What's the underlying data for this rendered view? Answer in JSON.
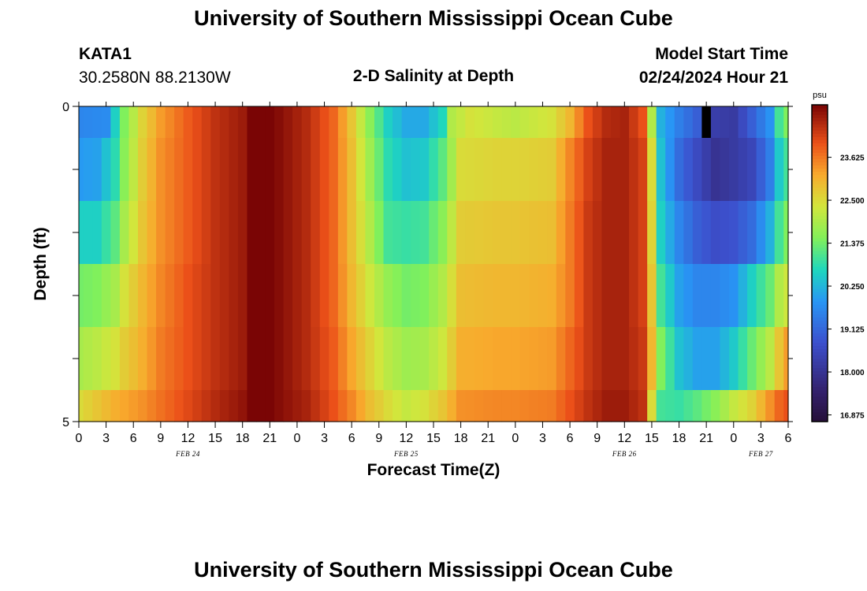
{
  "page": {
    "title": "University of Southern Mississippi Ocean Cube",
    "footer_title": "University of Southern Mississippi Ocean Cube",
    "station": {
      "id": "KATA1",
      "coords": "30.2580N  88.2130W"
    },
    "subtitle": "2-D Salinity at Depth",
    "model_start_label": "Model Start Time",
    "model_start_value": "02/24/2024 Hour 21"
  },
  "chart_data": {
    "type": "heatmap",
    "title": "2-D Salinity at Depth",
    "xlabel": "Forecast Time(Z)",
    "ylabel": "Depth (ft)",
    "x_unit": "hours since FEB 24 00Z",
    "xlim": [
      0,
      78
    ],
    "ylim": [
      0,
      5
    ],
    "y_ticks": [
      0,
      1,
      2,
      3,
      4,
      5
    ],
    "y_tick_labels": [
      "0",
      "",
      "",
      "",
      "",
      "5"
    ],
    "x_ticks": [
      0,
      3,
      6,
      9,
      12,
      15,
      18,
      21,
      24,
      27,
      30,
      33,
      36,
      39,
      42,
      45,
      48,
      51,
      54,
      57,
      60,
      63,
      66,
      69,
      72,
      75,
      78
    ],
    "x_tick_labels": [
      "0",
      "3",
      "6",
      "9",
      "12",
      "15",
      "18",
      "21",
      "0",
      "3",
      "6",
      "9",
      "12",
      "15",
      "18",
      "21",
      "0",
      "3",
      "6",
      "9",
      "12",
      "15",
      "18",
      "21",
      "0",
      "3",
      "6"
    ],
    "date_labels": [
      {
        "text": "FEB 24",
        "hour": 12
      },
      {
        "text": "FEB 25",
        "hour": 36
      },
      {
        "text": "FEB 26",
        "hour": 60
      },
      {
        "text": "FEB 27",
        "hour": 75
      }
    ],
    "colorbar": {
      "unit": "psu",
      "min": 16.7,
      "max": 25.0,
      "ticks": [
        16.875,
        18.0,
        19.125,
        20.25,
        21.375,
        22.5,
        23.625
      ],
      "tick_labels": [
        "16.875",
        "18.000",
        "19.125",
        "20.250",
        "21.375",
        "22.500",
        "23.625"
      ]
    },
    "depth_layers": [
      0.25,
      1.0,
      2.0,
      3.0,
      4.0,
      4.75
    ],
    "layer_bounds": [
      0,
      0.5,
      1.5,
      2.5,
      3.5,
      4.5,
      5
    ],
    "salinity_knots": [
      {
        "depth": 0.25,
        "points": [
          [
            0,
            19.6
          ],
          [
            3,
            19.7
          ],
          [
            4,
            20.6
          ],
          [
            5,
            21.5
          ],
          [
            7,
            22.6
          ],
          [
            9,
            23.3
          ],
          [
            12,
            23.9
          ],
          [
            15,
            24.4
          ],
          [
            18,
            24.7
          ],
          [
            19,
            25.0
          ],
          [
            21,
            25.0
          ],
          [
            22,
            24.9
          ],
          [
            25,
            24.5
          ],
          [
            28,
            23.8
          ],
          [
            30,
            22.8
          ],
          [
            32,
            21.6
          ],
          [
            34,
            20.6
          ],
          [
            36,
            20.1
          ],
          [
            38,
            20.1
          ],
          [
            40,
            20.7
          ],
          [
            41,
            22.0
          ],
          [
            43,
            22.4
          ],
          [
            46,
            22.2
          ],
          [
            48,
            22.1
          ],
          [
            52,
            22.4
          ],
          [
            54,
            23.0
          ],
          [
            56,
            24.0
          ],
          [
            58,
            24.5
          ],
          [
            60,
            24.6
          ],
          [
            62,
            24.0
          ],
          [
            63,
            22.0
          ],
          [
            64,
            20.2
          ],
          [
            66,
            19.5
          ],
          [
            68,
            19.0
          ],
          [
            70,
            18.3
          ],
          [
            72,
            18.2
          ],
          [
            74,
            19.0
          ],
          [
            76,
            19.8
          ],
          [
            77,
            21.0
          ],
          [
            78,
            21.5
          ]
        ]
      },
      {
        "depth": 1.0,
        "points": [
          [
            0,
            19.9
          ],
          [
            2,
            20.0
          ],
          [
            4,
            20.8
          ],
          [
            5,
            21.6
          ],
          [
            7,
            22.7
          ],
          [
            9,
            23.4
          ],
          [
            12,
            23.9
          ],
          [
            15,
            24.4
          ],
          [
            18,
            24.7
          ],
          [
            19,
            25.0
          ],
          [
            21,
            25.0
          ],
          [
            22,
            24.9
          ],
          [
            25,
            24.5
          ],
          [
            28,
            23.8
          ],
          [
            30,
            22.9
          ],
          [
            32,
            21.8
          ],
          [
            34,
            20.8
          ],
          [
            36,
            20.4
          ],
          [
            38,
            20.5
          ],
          [
            40,
            21.2
          ],
          [
            42,
            22.5
          ],
          [
            46,
            22.6
          ],
          [
            48,
            22.6
          ],
          [
            52,
            22.7
          ],
          [
            54,
            23.5
          ],
          [
            56,
            24.2
          ],
          [
            58,
            24.6
          ],
          [
            60,
            24.6
          ],
          [
            62,
            24.2
          ],
          [
            63,
            22.5
          ],
          [
            64,
            20.4
          ],
          [
            66,
            19.2
          ],
          [
            68,
            18.6
          ],
          [
            70,
            18.0
          ],
          [
            72,
            18.2
          ],
          [
            74,
            18.5
          ],
          [
            76,
            19.5
          ],
          [
            77,
            20.5
          ],
          [
            78,
            21.0
          ]
        ]
      },
      {
        "depth": 2.0,
        "points": [
          [
            0,
            20.6
          ],
          [
            2,
            20.6
          ],
          [
            4,
            21.2
          ],
          [
            5,
            21.9
          ],
          [
            7,
            22.8
          ],
          [
            9,
            23.4
          ],
          [
            12,
            23.9
          ],
          [
            15,
            24.4
          ],
          [
            18,
            24.7
          ],
          [
            19,
            25.0
          ],
          [
            21,
            25.0
          ],
          [
            22,
            24.9
          ],
          [
            25,
            24.5
          ],
          [
            28,
            23.8
          ],
          [
            30,
            22.9
          ],
          [
            32,
            22.0
          ],
          [
            34,
            21.0
          ],
          [
            36,
            20.9
          ],
          [
            38,
            21.0
          ],
          [
            40,
            21.6
          ],
          [
            42,
            22.7
          ],
          [
            46,
            22.8
          ],
          [
            48,
            22.8
          ],
          [
            52,
            22.9
          ],
          [
            54,
            23.6
          ],
          [
            56,
            24.3
          ],
          [
            58,
            24.6
          ],
          [
            60,
            24.6
          ],
          [
            62,
            24.2
          ],
          [
            63,
            22.6
          ],
          [
            64,
            20.6
          ],
          [
            66,
            19.6
          ],
          [
            68,
            19.0
          ],
          [
            70,
            18.7
          ],
          [
            72,
            18.8
          ],
          [
            74,
            19.2
          ],
          [
            76,
            20.2
          ],
          [
            77,
            21.0
          ],
          [
            78,
            21.5
          ]
        ]
      },
      {
        "depth": 3.0,
        "points": [
          [
            0,
            21.4
          ],
          [
            2,
            21.5
          ],
          [
            4,
            21.9
          ],
          [
            5,
            22.4
          ],
          [
            7,
            23.0
          ],
          [
            9,
            23.5
          ],
          [
            12,
            24.0
          ],
          [
            15,
            24.4
          ],
          [
            18,
            24.7
          ],
          [
            19,
            25.0
          ],
          [
            21,
            25.0
          ],
          [
            22,
            24.9
          ],
          [
            25,
            24.5
          ],
          [
            28,
            23.8
          ],
          [
            30,
            23.0
          ],
          [
            32,
            22.3
          ],
          [
            34,
            21.7
          ],
          [
            36,
            21.4
          ],
          [
            38,
            21.5
          ],
          [
            40,
            22.0
          ],
          [
            42,
            22.9
          ],
          [
            46,
            23.0
          ],
          [
            48,
            23.0
          ],
          [
            52,
            23.1
          ],
          [
            54,
            23.6
          ],
          [
            56,
            24.3
          ],
          [
            58,
            24.6
          ],
          [
            60,
            24.6
          ],
          [
            62,
            24.2
          ],
          [
            63,
            22.8
          ],
          [
            64,
            21.0
          ],
          [
            66,
            20.0
          ],
          [
            68,
            19.6
          ],
          [
            70,
            19.6
          ],
          [
            72,
            19.8
          ],
          [
            74,
            20.6
          ],
          [
            76,
            21.3
          ],
          [
            77,
            22.0
          ],
          [
            78,
            22.3
          ]
        ]
      },
      {
        "depth": 4.0,
        "points": [
          [
            0,
            21.9
          ],
          [
            2,
            22.1
          ],
          [
            4,
            22.4
          ],
          [
            5,
            22.7
          ],
          [
            7,
            23.1
          ],
          [
            9,
            23.6
          ],
          [
            12,
            24.0
          ],
          [
            15,
            24.4
          ],
          [
            18,
            24.7
          ],
          [
            19,
            25.0
          ],
          [
            21,
            25.0
          ],
          [
            22,
            24.9
          ],
          [
            25,
            24.5
          ],
          [
            28,
            23.9
          ],
          [
            30,
            23.2
          ],
          [
            32,
            22.6
          ],
          [
            34,
            22.1
          ],
          [
            36,
            21.8
          ],
          [
            38,
            21.9
          ],
          [
            40,
            22.3
          ],
          [
            42,
            23.1
          ],
          [
            46,
            23.2
          ],
          [
            48,
            23.2
          ],
          [
            52,
            23.3
          ],
          [
            54,
            23.8
          ],
          [
            56,
            24.3
          ],
          [
            58,
            24.6
          ],
          [
            60,
            24.6
          ],
          [
            62,
            24.3
          ],
          [
            63,
            23.0
          ],
          [
            64,
            21.5
          ],
          [
            66,
            20.4
          ],
          [
            68,
            20.0
          ],
          [
            70,
            20.0
          ],
          [
            72,
            20.5
          ],
          [
            74,
            21.3
          ],
          [
            76,
            22.1
          ],
          [
            77,
            22.8
          ],
          [
            78,
            23.3
          ]
        ]
      },
      {
        "depth": 4.75,
        "points": [
          [
            0,
            22.5
          ],
          [
            2,
            22.8
          ],
          [
            4,
            23.1
          ],
          [
            5,
            23.2
          ],
          [
            7,
            23.4
          ],
          [
            9,
            23.7
          ],
          [
            12,
            24.1
          ],
          [
            15,
            24.5
          ],
          [
            18,
            24.8
          ],
          [
            19,
            25.0
          ],
          [
            21,
            25.0
          ],
          [
            22,
            24.9
          ],
          [
            25,
            24.6
          ],
          [
            28,
            24.0
          ],
          [
            30,
            23.5
          ],
          [
            32,
            22.9
          ],
          [
            34,
            22.5
          ],
          [
            36,
            22.2
          ],
          [
            38,
            22.4
          ],
          [
            40,
            22.8
          ],
          [
            42,
            23.4
          ],
          [
            46,
            23.5
          ],
          [
            48,
            23.5
          ],
          [
            52,
            23.6
          ],
          [
            54,
            24.0
          ],
          [
            56,
            24.4
          ],
          [
            58,
            24.7
          ],
          [
            60,
            24.7
          ],
          [
            62,
            24.4
          ],
          [
            63,
            22.5
          ],
          [
            64,
            21.0
          ],
          [
            66,
            20.9
          ],
          [
            68,
            21.2
          ],
          [
            70,
            21.6
          ],
          [
            72,
            22.2
          ],
          [
            74,
            22.6
          ],
          [
            76,
            23.4
          ],
          [
            77,
            23.8
          ],
          [
            78,
            24.0
          ]
        ]
      }
    ],
    "missing_cells": [
      {
        "depth_from": 0,
        "depth_to": 0.5,
        "hour_from": 68.5,
        "hour_to": 69.5
      }
    ]
  }
}
